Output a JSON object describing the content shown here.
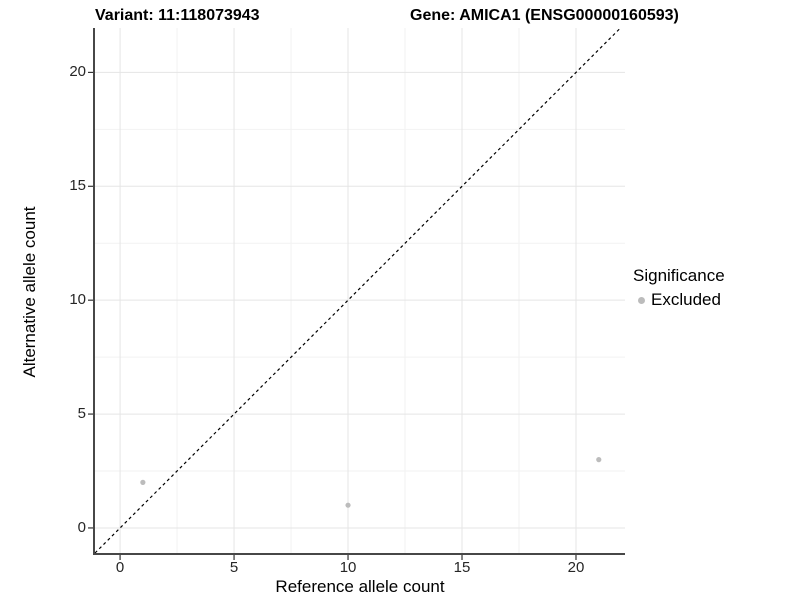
{
  "titles": {
    "variant": "Variant: 11:118073943",
    "gene": "Gene: AMICA1 (ENSG00000160593)"
  },
  "legend": {
    "title": "Significance",
    "entries": [
      {
        "label": "Excluded",
        "color": "#bcbcbc"
      }
    ]
  },
  "colors": {
    "point": "#bcbcbc",
    "grid_major": "#e5e5e5",
    "grid_minor": "#f2f2f2",
    "axis_line": "#474747",
    "tick_mark": "#333333",
    "reference_line": "#000000",
    "background": "#ffffff"
  },
  "chart_data": {
    "type": "scatter",
    "title": "Variant: 11:118073943 — Gene: AMICA1 (ENSG00000160593)",
    "xlabel": "Reference allele count",
    "ylabel": "Alternative allele count",
    "xlim": [
      -1.1,
      22.15
    ],
    "ylim": [
      -1.1,
      21.95
    ],
    "xticks": [
      0,
      5,
      10,
      15,
      20
    ],
    "yticks": [
      0,
      5,
      10,
      15,
      20
    ],
    "xminor": [
      2.5,
      7.5,
      12.5,
      17.5
    ],
    "yminor": [
      2.5,
      7.5,
      12.5,
      17.5
    ],
    "grid": true,
    "legend_position": "right",
    "legend_title": "Significance",
    "series": [
      {
        "name": "Excluded",
        "color": "#bcbcbc",
        "points": [
          [
            1,
            2
          ],
          [
            10,
            1
          ],
          [
            21,
            3
          ]
        ]
      }
    ],
    "reference_line": {
      "type": "identity",
      "slope": 1,
      "intercept": 0,
      "style": "dashed",
      "color": "#000000"
    }
  }
}
